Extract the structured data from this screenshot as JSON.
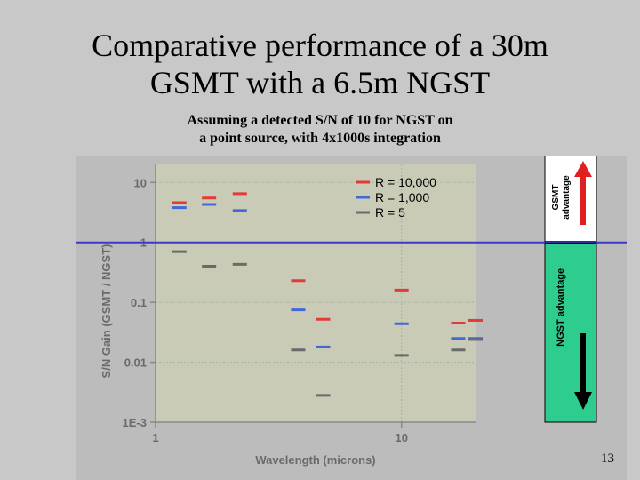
{
  "slide": {
    "title_line1": "Comparative performance of a 30m",
    "title_line2": "GSMT with a 6.5m NGST",
    "subtitle_line1": "Assuming a detected S/N of 10 for NGST on",
    "subtitle_line2": "a point source, with 4x1000s integration",
    "page_number": "13"
  },
  "chart_data": {
    "type": "scatter",
    "xlabel": "Wavelength (microns)",
    "ylabel": "S/N Gain (GSMT / NGST)",
    "x_scale": "log",
    "y_scale": "log",
    "xlim": [
      1,
      20
    ],
    "ylim": [
      0.001,
      20
    ],
    "x_ticks": [
      {
        "value": 1,
        "label": "1"
      },
      {
        "value": 10,
        "label": "10"
      }
    ],
    "y_ticks": [
      {
        "value": 10,
        "label": "10"
      },
      {
        "value": 1,
        "label": "1"
      },
      {
        "value": 0.1,
        "label": "0.1"
      },
      {
        "value": 0.01,
        "label": "0.01"
      },
      {
        "value": 0.001,
        "label": "1E-3"
      }
    ],
    "grid": true,
    "reference_line": 1,
    "legend_position": "top-right",
    "series": [
      {
        "name": "R =  10,000",
        "color": "#e23a3a",
        "x": [
          1.25,
          1.65,
          2.2,
          3.8,
          4.8,
          10,
          17,
          20
        ],
        "y": [
          4.6,
          5.5,
          6.5,
          0.23,
          0.052,
          0.16,
          0.045,
          0.05
        ]
      },
      {
        "name": "R =  1,000",
        "color": "#4169d6",
        "x": [
          1.25,
          1.65,
          2.2,
          3.8,
          4.8,
          10,
          17,
          20
        ],
        "y": [
          3.8,
          4.3,
          3.4,
          0.075,
          0.018,
          0.044,
          0.025,
          0.025
        ]
      },
      {
        "name": "R =  5",
        "color": "#6a6a6a",
        "x": [
          1.25,
          1.65,
          2.2,
          3.8,
          4.8,
          10,
          17,
          20
        ],
        "y": [
          0.7,
          0.4,
          0.43,
          0.016,
          0.0028,
          0.013,
          0.016,
          0.024
        ]
      }
    ],
    "annotations": {
      "gsmt_advantage_line1": "GSMT",
      "gsmt_advantage_line2": "advantage",
      "ngst_advantage": "NGST advantage"
    },
    "colors": {
      "plot_background": "#c9cbb6",
      "panel_background": "#bcbcbc",
      "reference_line": "#3a3ac8",
      "gsmt_arrow": "#e02020",
      "ngst_band": "#2ecc8e"
    }
  }
}
